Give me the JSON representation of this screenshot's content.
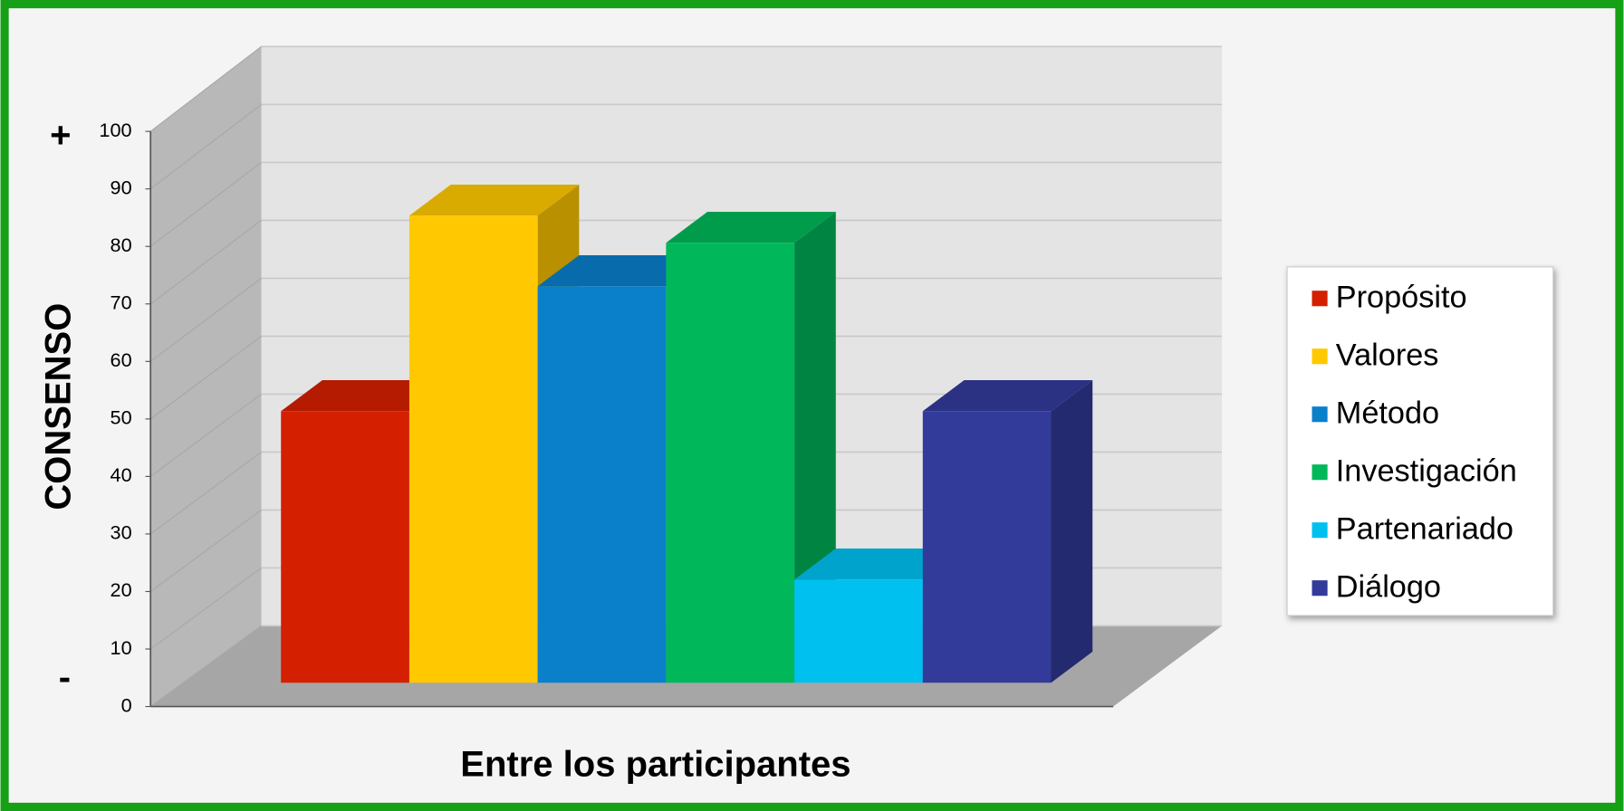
{
  "chart_data": {
    "type": "bar3d",
    "ylabel": "CONSENSO",
    "xlabel": "Entre los participantes",
    "annotations": [
      "+",
      "-"
    ],
    "categories": [
      "Propósito",
      "Valores",
      "Método",
      "Investigación",
      "Partenariado",
      "Diálogo"
    ],
    "values": [
      50,
      86,
      73,
      81,
      19,
      50
    ],
    "colors": [
      "#d42000",
      "#ffc800",
      "#0a7fca",
      "#00b85a",
      "#00c0f0",
      "#323a9a"
    ],
    "ylim": [
      0,
      100
    ],
    "yticks": [
      0,
      10,
      20,
      30,
      40,
      50,
      60,
      70,
      80,
      90,
      100
    ],
    "grid": true,
    "legend": "right"
  }
}
